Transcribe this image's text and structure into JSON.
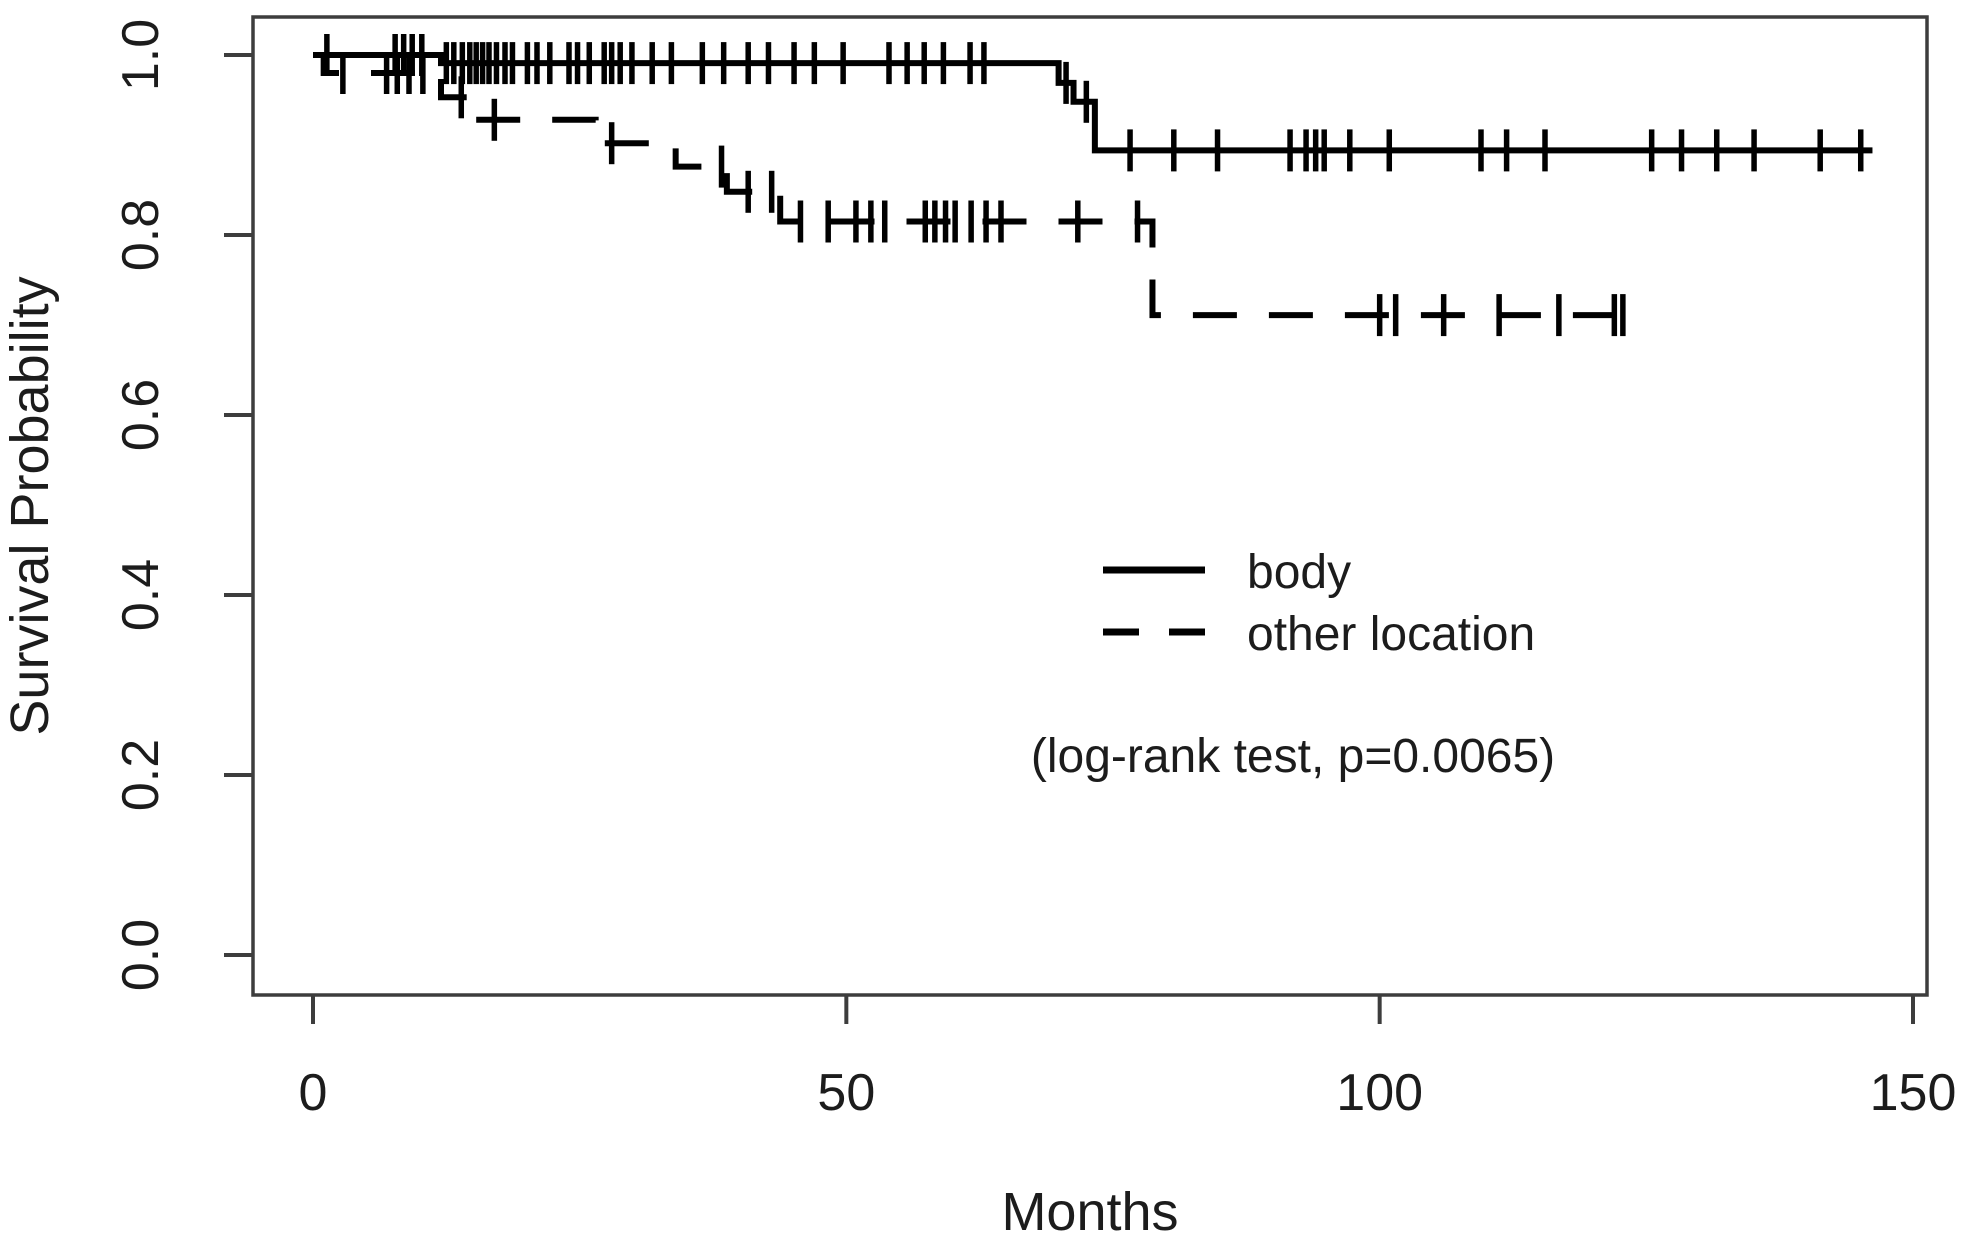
{
  "figure_title": "Kaplan-Meier survival plot",
  "colors": {
    "background": "#ffffff",
    "curve": "#000000",
    "axis": "#3d3d3d",
    "text": "#1c1c1c"
  },
  "chart_data": {
    "type": "line",
    "subtype": "kaplan-meier-step",
    "title": "",
    "xlabel": "Months",
    "ylabel": "Survival Probability",
    "xlim": [
      0,
      150
    ],
    "ylim": [
      0,
      1
    ],
    "grid": false,
    "legend_position": "center-right",
    "annotation": "(log-rank test, p=0.0065)",
    "xticks": [
      {
        "value": 0,
        "label": "0"
      },
      {
        "value": 50,
        "label": "50"
      },
      {
        "value": 100,
        "label": "100"
      },
      {
        "value": 150,
        "label": "150"
      }
    ],
    "yticks": [
      {
        "value": 0.0,
        "label": "0.0"
      },
      {
        "value": 0.2,
        "label": "0.2"
      },
      {
        "value": 0.4,
        "label": "0.4"
      },
      {
        "value": 0.6,
        "label": "0.6"
      },
      {
        "value": 0.8,
        "label": "0.8"
      },
      {
        "value": 1.0,
        "label": "1.0"
      }
    ],
    "series": [
      {
        "name": "body",
        "line": "solid",
        "steps": [
          [
            0,
            1.0
          ],
          [
            12,
            0.991
          ],
          [
            69.9,
            0.969
          ],
          [
            71.3,
            0.948
          ],
          [
            73.3,
            0.894
          ],
          [
            146.2,
            0.894
          ]
        ],
        "censors": [
          [
            1.3,
            1.0
          ],
          [
            7.7,
            1.0
          ],
          [
            8.5,
            1.0
          ],
          [
            9.3,
            1.0
          ],
          [
            10.2,
            1.0
          ],
          [
            12.5,
            0.991
          ],
          [
            13.2,
            0.991
          ],
          [
            14.0,
            0.991
          ],
          [
            14.7,
            0.991
          ],
          [
            15.3,
            0.991
          ],
          [
            15.9,
            0.991
          ],
          [
            16.5,
            0.991
          ],
          [
            17.2,
            0.991
          ],
          [
            18.0,
            0.991
          ],
          [
            18.7,
            0.991
          ],
          [
            20.1,
            0.991
          ],
          [
            21.0,
            0.991
          ],
          [
            22.2,
            0.991
          ],
          [
            24.0,
            0.991
          ],
          [
            24.8,
            0.991
          ],
          [
            25.9,
            0.991
          ],
          [
            27.3,
            0.991
          ],
          [
            28.0,
            0.991
          ],
          [
            28.8,
            0.991
          ],
          [
            29.9,
            0.991
          ],
          [
            31.8,
            0.991
          ],
          [
            33.6,
            0.991
          ],
          [
            36.5,
            0.991
          ],
          [
            38.5,
            0.991
          ],
          [
            40.8,
            0.991
          ],
          [
            42.7,
            0.991
          ],
          [
            45.1,
            0.991
          ],
          [
            47.0,
            0.991
          ],
          [
            49.7,
            0.991
          ],
          [
            54.0,
            0.991
          ],
          [
            55.7,
            0.991
          ],
          [
            57.3,
            0.991
          ],
          [
            59.1,
            0.991
          ],
          [
            61.6,
            0.991
          ],
          [
            62.9,
            0.991
          ],
          [
            70.6,
            0.969
          ],
          [
            72.5,
            0.948
          ],
          [
            76.6,
            0.894
          ],
          [
            80.7,
            0.894
          ],
          [
            84.8,
            0.894
          ],
          [
            91.6,
            0.894
          ],
          [
            93.1,
            0.894
          ],
          [
            94.0,
            0.894
          ],
          [
            94.8,
            0.894
          ],
          [
            97.2,
            0.894
          ],
          [
            100.9,
            0.894
          ],
          [
            109.5,
            0.894
          ],
          [
            111.9,
            0.894
          ],
          [
            115.5,
            0.894
          ],
          [
            125.5,
            0.894
          ],
          [
            128.3,
            0.894
          ],
          [
            131.6,
            0.894
          ],
          [
            135.1,
            0.894
          ],
          [
            141.3,
            0.894
          ],
          [
            145.1,
            0.894
          ]
        ]
      },
      {
        "name": "other location",
        "line": "dashed",
        "steps": [
          [
            0,
            1.0
          ],
          [
            1,
            0.98
          ],
          [
            12,
            0.953
          ],
          [
            15,
            0.928
          ],
          [
            26.5,
            0.902
          ],
          [
            34,
            0.876
          ],
          [
            38.8,
            0.848
          ],
          [
            43.8,
            0.815
          ],
          [
            78.7,
            0.711
          ],
          [
            124.3,
            0.711
          ]
        ],
        "censors": [
          [
            2.8,
            0.98
          ],
          [
            6.9,
            0.98
          ],
          [
            7.9,
            0.98
          ],
          [
            9.0,
            0.98
          ],
          [
            10.3,
            0.98
          ],
          [
            13.9,
            0.953
          ],
          [
            17.0,
            0.928
          ],
          [
            28.0,
            0.902
          ],
          [
            38.3,
            0.876
          ],
          [
            40.8,
            0.848
          ],
          [
            43.0,
            0.848
          ],
          [
            45.7,
            0.815
          ],
          [
            48.3,
            0.815
          ],
          [
            50.9,
            0.815
          ],
          [
            52.3,
            0.815
          ],
          [
            53.6,
            0.815
          ],
          [
            57.4,
            0.815
          ],
          [
            58.3,
            0.815
          ],
          [
            59.3,
            0.815
          ],
          [
            60.2,
            0.815
          ],
          [
            61.7,
            0.815
          ],
          [
            63.1,
            0.815
          ],
          [
            64.5,
            0.815
          ],
          [
            71.7,
            0.815
          ],
          [
            77.3,
            0.815
          ],
          [
            100.0,
            0.711
          ],
          [
            101.5,
            0.711
          ],
          [
            106.0,
            0.711
          ],
          [
            111.2,
            0.711
          ],
          [
            116.8,
            0.711
          ],
          [
            122.0,
            0.711
          ],
          [
            122.8,
            0.711
          ]
        ]
      }
    ]
  },
  "legend": {
    "items": [
      {
        "label": "body",
        "style": "solid"
      },
      {
        "label": "other location",
        "style": "dashed"
      }
    ]
  }
}
